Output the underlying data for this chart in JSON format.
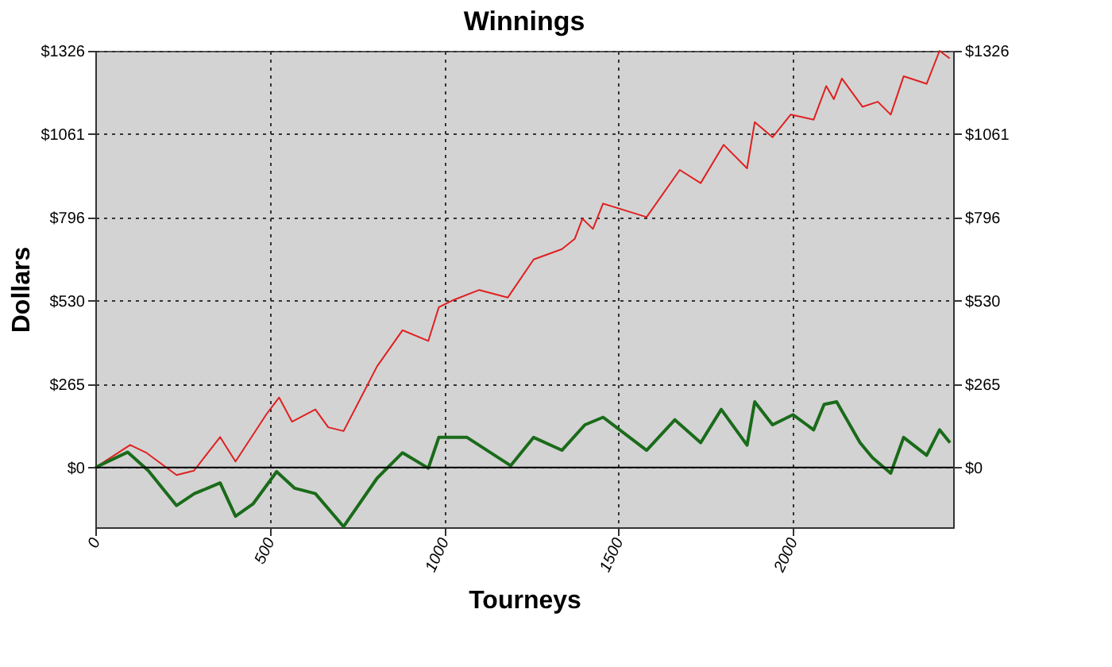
{
  "chart_data": {
    "type": "line",
    "title": "Winnings",
    "xlabel": "Tourneys",
    "ylabel": "Dollars",
    "x": [
      0,
      100,
      145,
      233,
      283,
      358,
      402,
      491,
      527,
      564,
      631,
      668,
      712,
      808,
      881,
      955,
      985,
      1029,
      1101,
      1183,
      1257,
      1338,
      1375,
      1397,
      1427,
      1456,
      1581,
      1676,
      1736,
      1802,
      1869,
      1891,
      1942,
      1994,
      2060,
      2096,
      2118,
      2141,
      2200,
      2244,
      2281,
      2318,
      2384,
      2421,
      2450
    ],
    "series": [
      {
        "color": "#e02020",
        "values": [
          0,
          72,
          48,
          -24,
          -10,
          97,
          19,
          170,
          223,
          146,
          185,
          128,
          116,
          322,
          437,
          403,
          510,
          534,
          565,
          541,
          662,
          695,
          728,
          792,
          759,
          840,
          797,
          947,
          905,
          1027,
          952,
          1099,
          1051,
          1123,
          1107,
          1214,
          1172,
          1238,
          1148,
          1164,
          1123,
          1245,
          1221,
          1326,
          1302
        ]
      },
      {
        "color": "#1a6b1a",
        "x": [
          0,
          93,
          152,
          233,
          284,
          358,
          402,
          452,
          520,
          572,
          631,
          712,
          808,
          881,
          955,
          985,
          1066,
          1191,
          1257,
          1338,
          1404,
          1456,
          1581,
          1662,
          1736,
          1795,
          1869,
          1891,
          1942,
          2001,
          2060,
          2090,
          2126,
          2193,
          2229,
          2281,
          2318,
          2384,
          2421,
          2451
        ],
        "values": [
          0,
          49,
          -10,
          -121,
          -83,
          -49,
          -155,
          -116,
          -13,
          -66,
          -83,
          -188,
          -34,
          47,
          -2,
          96,
          96,
          6,
          96,
          55,
          136,
          160,
          55,
          152,
          79,
          185,
          71,
          209,
          136,
          168,
          120,
          201,
          209,
          79,
          31,
          -18,
          96,
          39,
          120,
          79
        ]
      }
    ],
    "xlim": [
      0,
      2460
    ],
    "xticks": [
      0,
      500,
      1000,
      1500,
      2000
    ],
    "ylim": [
      -190,
      1326
    ],
    "yticks": [
      {
        "value": 0,
        "label": "$0"
      },
      {
        "value": 265.2,
        "label": "$265"
      },
      {
        "value": 530.4,
        "label": "$530"
      },
      {
        "value": 795.6,
        "label": "$796"
      },
      {
        "value": 1060.8,
        "label": "$1061"
      },
      {
        "value": 1326,
        "label": "$1326"
      }
    ],
    "y2lim": [
      -190,
      1326
    ],
    "y2ticks": [
      {
        "value": 0,
        "label": "$0"
      },
      {
        "value": 265.2,
        "label": "$265"
      },
      {
        "value": 530.4,
        "label": "$530"
      },
      {
        "value": 795.6,
        "label": "$796"
      },
      {
        "value": 1060.8,
        "label": "$1061"
      },
      {
        "value": 1326,
        "label": "$1326"
      }
    ],
    "ref_lines": [
      {
        "axis": "y",
        "value": 0,
        "color": "#000000"
      }
    ],
    "grid": true,
    "legend": false,
    "line_style": "solid",
    "marker": "none"
  }
}
